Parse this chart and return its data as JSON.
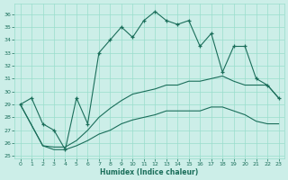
{
  "xlabel": "Humidex (Indice chaleur)",
  "bg_color": "#cceee8",
  "grid_color": "#99ddcc",
  "line_color": "#1a6e5a",
  "xlim": [
    -0.5,
    23.5
  ],
  "ylim": [
    24.8,
    36.8
  ],
  "yticks": [
    25,
    26,
    27,
    28,
    29,
    30,
    31,
    32,
    33,
    34,
    35,
    36
  ],
  "xticks": [
    0,
    1,
    2,
    3,
    4,
    5,
    6,
    7,
    8,
    9,
    10,
    11,
    12,
    13,
    14,
    15,
    16,
    17,
    18,
    19,
    20,
    21,
    22,
    23
  ],
  "series1_x": [
    0,
    1,
    2,
    3,
    4,
    5,
    6,
    7,
    8,
    9,
    10,
    11,
    12,
    13,
    14,
    15,
    16,
    17,
    18,
    19,
    20,
    21,
    22,
    23
  ],
  "series1_y": [
    29.0,
    29.5,
    27.5,
    27.0,
    25.5,
    29.5,
    27.5,
    33.0,
    34.0,
    35.0,
    34.2,
    35.5,
    36.2,
    35.5,
    35.2,
    35.5,
    33.5,
    34.5,
    31.5,
    33.5,
    33.5,
    31.0,
    30.5,
    29.5
  ],
  "series2_x": [
    0,
    2,
    3,
    4,
    5,
    6,
    7,
    8,
    9,
    10,
    11,
    12,
    13,
    14,
    15,
    16,
    17,
    18,
    19,
    20,
    21,
    22,
    23
  ],
  "series2_y": [
    29.0,
    25.8,
    25.7,
    25.7,
    26.2,
    27.0,
    28.0,
    28.7,
    29.3,
    29.8,
    30.0,
    30.2,
    30.5,
    30.5,
    30.8,
    30.8,
    31.0,
    31.2,
    30.8,
    30.5,
    30.5,
    30.5,
    29.5
  ],
  "series3_x": [
    0,
    2,
    3,
    4,
    5,
    6,
    7,
    8,
    9,
    10,
    11,
    12,
    13,
    14,
    15,
    16,
    17,
    18,
    19,
    20,
    21,
    22,
    23
  ],
  "series3_y": [
    29.0,
    25.8,
    25.5,
    25.5,
    25.8,
    26.2,
    26.7,
    27.0,
    27.5,
    27.8,
    28.0,
    28.2,
    28.5,
    28.5,
    28.5,
    28.5,
    28.8,
    28.8,
    28.5,
    28.2,
    27.7,
    27.5,
    27.5
  ]
}
